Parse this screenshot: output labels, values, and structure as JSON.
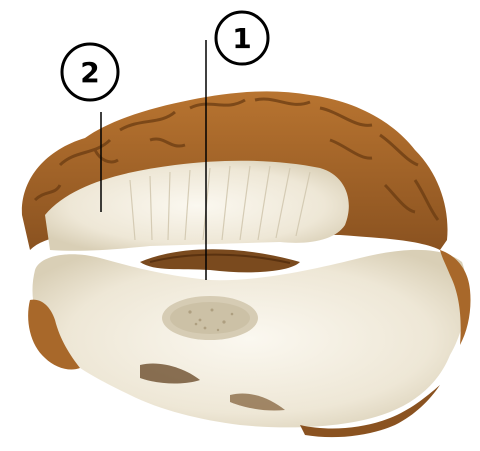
{
  "callouts": [
    {
      "id": "1",
      "label": "1"
    },
    {
      "id": "2",
      "label": "2"
    }
  ],
  "colors": {
    "background": "#ffffff",
    "cortex": "#a8682a",
    "cortex_dark": "#6b3c12",
    "white_matter": "#f3efe4",
    "white_matter_shadow": "#d8d0bb",
    "ventricle": "#7a4a1e",
    "callout_stroke": "#000000"
  },
  "image": {
    "subject": "brain-dissection-photo"
  }
}
